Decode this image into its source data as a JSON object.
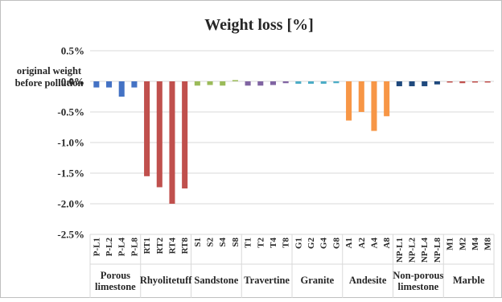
{
  "chart_data": {
    "type": "bar",
    "title": "Weight loss [%]",
    "baseline_annotation": [
      "original weight",
      "before pollution"
    ],
    "y_ticks": [
      "0.5%",
      "0.0%",
      "-0.5%",
      "-1.0%",
      "-1.5%",
      "-2.0%",
      "-2.5%"
    ],
    "y_tick_values": [
      0.5,
      0.0,
      -0.5,
      -1.0,
      -1.5,
      -2.0,
      -2.5
    ],
    "ylim": [
      -2.5,
      0.5
    ],
    "grid": true,
    "groups": [
      {
        "name": [
          "Porous",
          "limestone"
        ],
        "color": "#4472C4",
        "samples": [
          "P-L1",
          "P-L2",
          "P-L4",
          "P-L8"
        ],
        "values": [
          -0.1,
          -0.1,
          -0.25,
          -0.1
        ]
      },
      {
        "name": [
          "Rhyolitetuff"
        ],
        "color": "#C0504D",
        "samples": [
          "RT1",
          "RT2",
          "RT4",
          "RT8"
        ],
        "values": [
          -1.55,
          -1.73,
          -2.0,
          -1.75
        ]
      },
      {
        "name": [
          "Sandstone"
        ],
        "color": "#9BBB59",
        "samples": [
          "S1",
          "S2",
          "S4",
          "S8"
        ],
        "values": [
          -0.07,
          -0.06,
          -0.07,
          0.02
        ]
      },
      {
        "name": [
          "Travertine"
        ],
        "color": "#8064A2",
        "samples": [
          "T1",
          "T2",
          "T4",
          "T8"
        ],
        "values": [
          -0.07,
          -0.07,
          -0.06,
          -0.03
        ]
      },
      {
        "name": [
          "Granite"
        ],
        "color": "#4BACC6",
        "samples": [
          "G1",
          "G2",
          "G4",
          "G8"
        ],
        "values": [
          -0.04,
          -0.04,
          -0.04,
          -0.03
        ]
      },
      {
        "name": [
          "Andesite"
        ],
        "color": "#F79646",
        "samples": [
          "A1",
          "A2",
          "A4",
          "A8"
        ],
        "values": [
          -0.64,
          -0.5,
          -0.81,
          -0.57
        ]
      },
      {
        "name": [
          "Non-porous",
          "limestone"
        ],
        "color": "#1F497D",
        "samples": [
          "NP-L1",
          "NP-L2",
          "NP-L4",
          "NP-L8"
        ],
        "values": [
          -0.08,
          -0.08,
          -0.08,
          -0.05
        ]
      },
      {
        "name": [
          "Marble"
        ],
        "color": "#C0504D",
        "samples": [
          "M1",
          "M2",
          "M4",
          "M8"
        ],
        "values": [
          -0.02,
          -0.03,
          -0.02,
          0.0
        ]
      }
    ]
  }
}
